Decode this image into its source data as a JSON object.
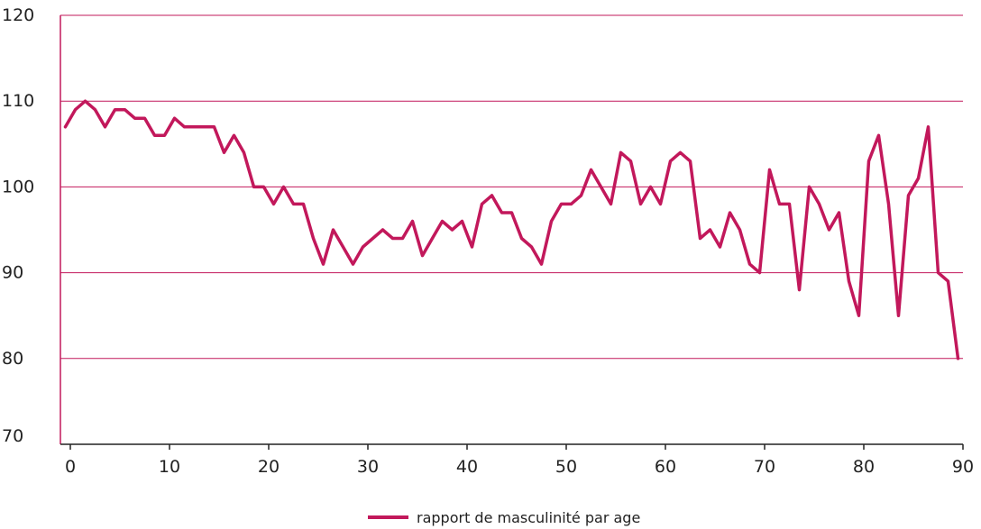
{
  "chart_data": {
    "type": "line",
    "title": "",
    "xlabel": "",
    "ylabel": "",
    "xlim": [
      -1,
      90
    ],
    "ylim": [
      70,
      120
    ],
    "x_ticks": [
      0,
      10,
      20,
      30,
      40,
      50,
      60,
      70,
      80,
      90
    ],
    "y_ticks": [
      70,
      80,
      90,
      100,
      110,
      120
    ],
    "grid": "horizontal",
    "legend_position": "bottom",
    "series": [
      {
        "name": "rapport de masculinité par age",
        "color": "#c2185b",
        "x": [
          -0.5,
          0.5,
          1.5,
          2.5,
          3.5,
          4.5,
          5.5,
          6.5,
          7.5,
          8.5,
          9.5,
          10.5,
          11.5,
          12.5,
          13.5,
          14.5,
          15.5,
          16.5,
          17.5,
          18.5,
          19.5,
          20.5,
          21.5,
          22.5,
          23.5,
          24.5,
          25.5,
          26.5,
          27.5,
          28.5,
          29.5,
          30.5,
          31.5,
          32.5,
          33.5,
          34.5,
          35.5,
          36.5,
          37.5,
          38.5,
          39.5,
          40.5,
          41.5,
          42.5,
          43.5,
          44.5,
          45.5,
          46.5,
          47.5,
          48.5,
          49.5,
          50.5,
          51.5,
          52.5,
          53.5,
          54.5,
          55.5,
          56.5,
          57.5,
          58.5,
          59.5,
          60.5,
          61.5,
          62.5,
          63.5,
          64.5,
          65.5,
          66.5,
          67.5,
          68.5,
          69.5,
          70.5,
          71.5,
          72.5,
          73.5,
          74.5,
          75.5,
          76.5,
          77.5,
          78.5,
          79.5,
          80.5,
          81.5,
          82.5,
          83.5,
          84.5,
          85.5,
          86.5,
          87.5,
          88.5,
          89.5
        ],
        "y": [
          107,
          109,
          110,
          109,
          107,
          109,
          109,
          108,
          108,
          106,
          106,
          108,
          107,
          107,
          107,
          107,
          104,
          106,
          104,
          100,
          100,
          98,
          100,
          98,
          98,
          94,
          91,
          95,
          93,
          91,
          93,
          94,
          95,
          94,
          94,
          96,
          92,
          94,
          96,
          95,
          96,
          93,
          98,
          99,
          97,
          97,
          94,
          93,
          91,
          96,
          98,
          98,
          99,
          102,
          100,
          98,
          104,
          103,
          98,
          100,
          98,
          103,
          104,
          103,
          94,
          95,
          93,
          97,
          95,
          91,
          90,
          102,
          98,
          98,
          88,
          100,
          98,
          95,
          97,
          89,
          85,
          103,
          106,
          98,
          85,
          99,
          101,
          107,
          90,
          89,
          80
        ]
      }
    ]
  }
}
